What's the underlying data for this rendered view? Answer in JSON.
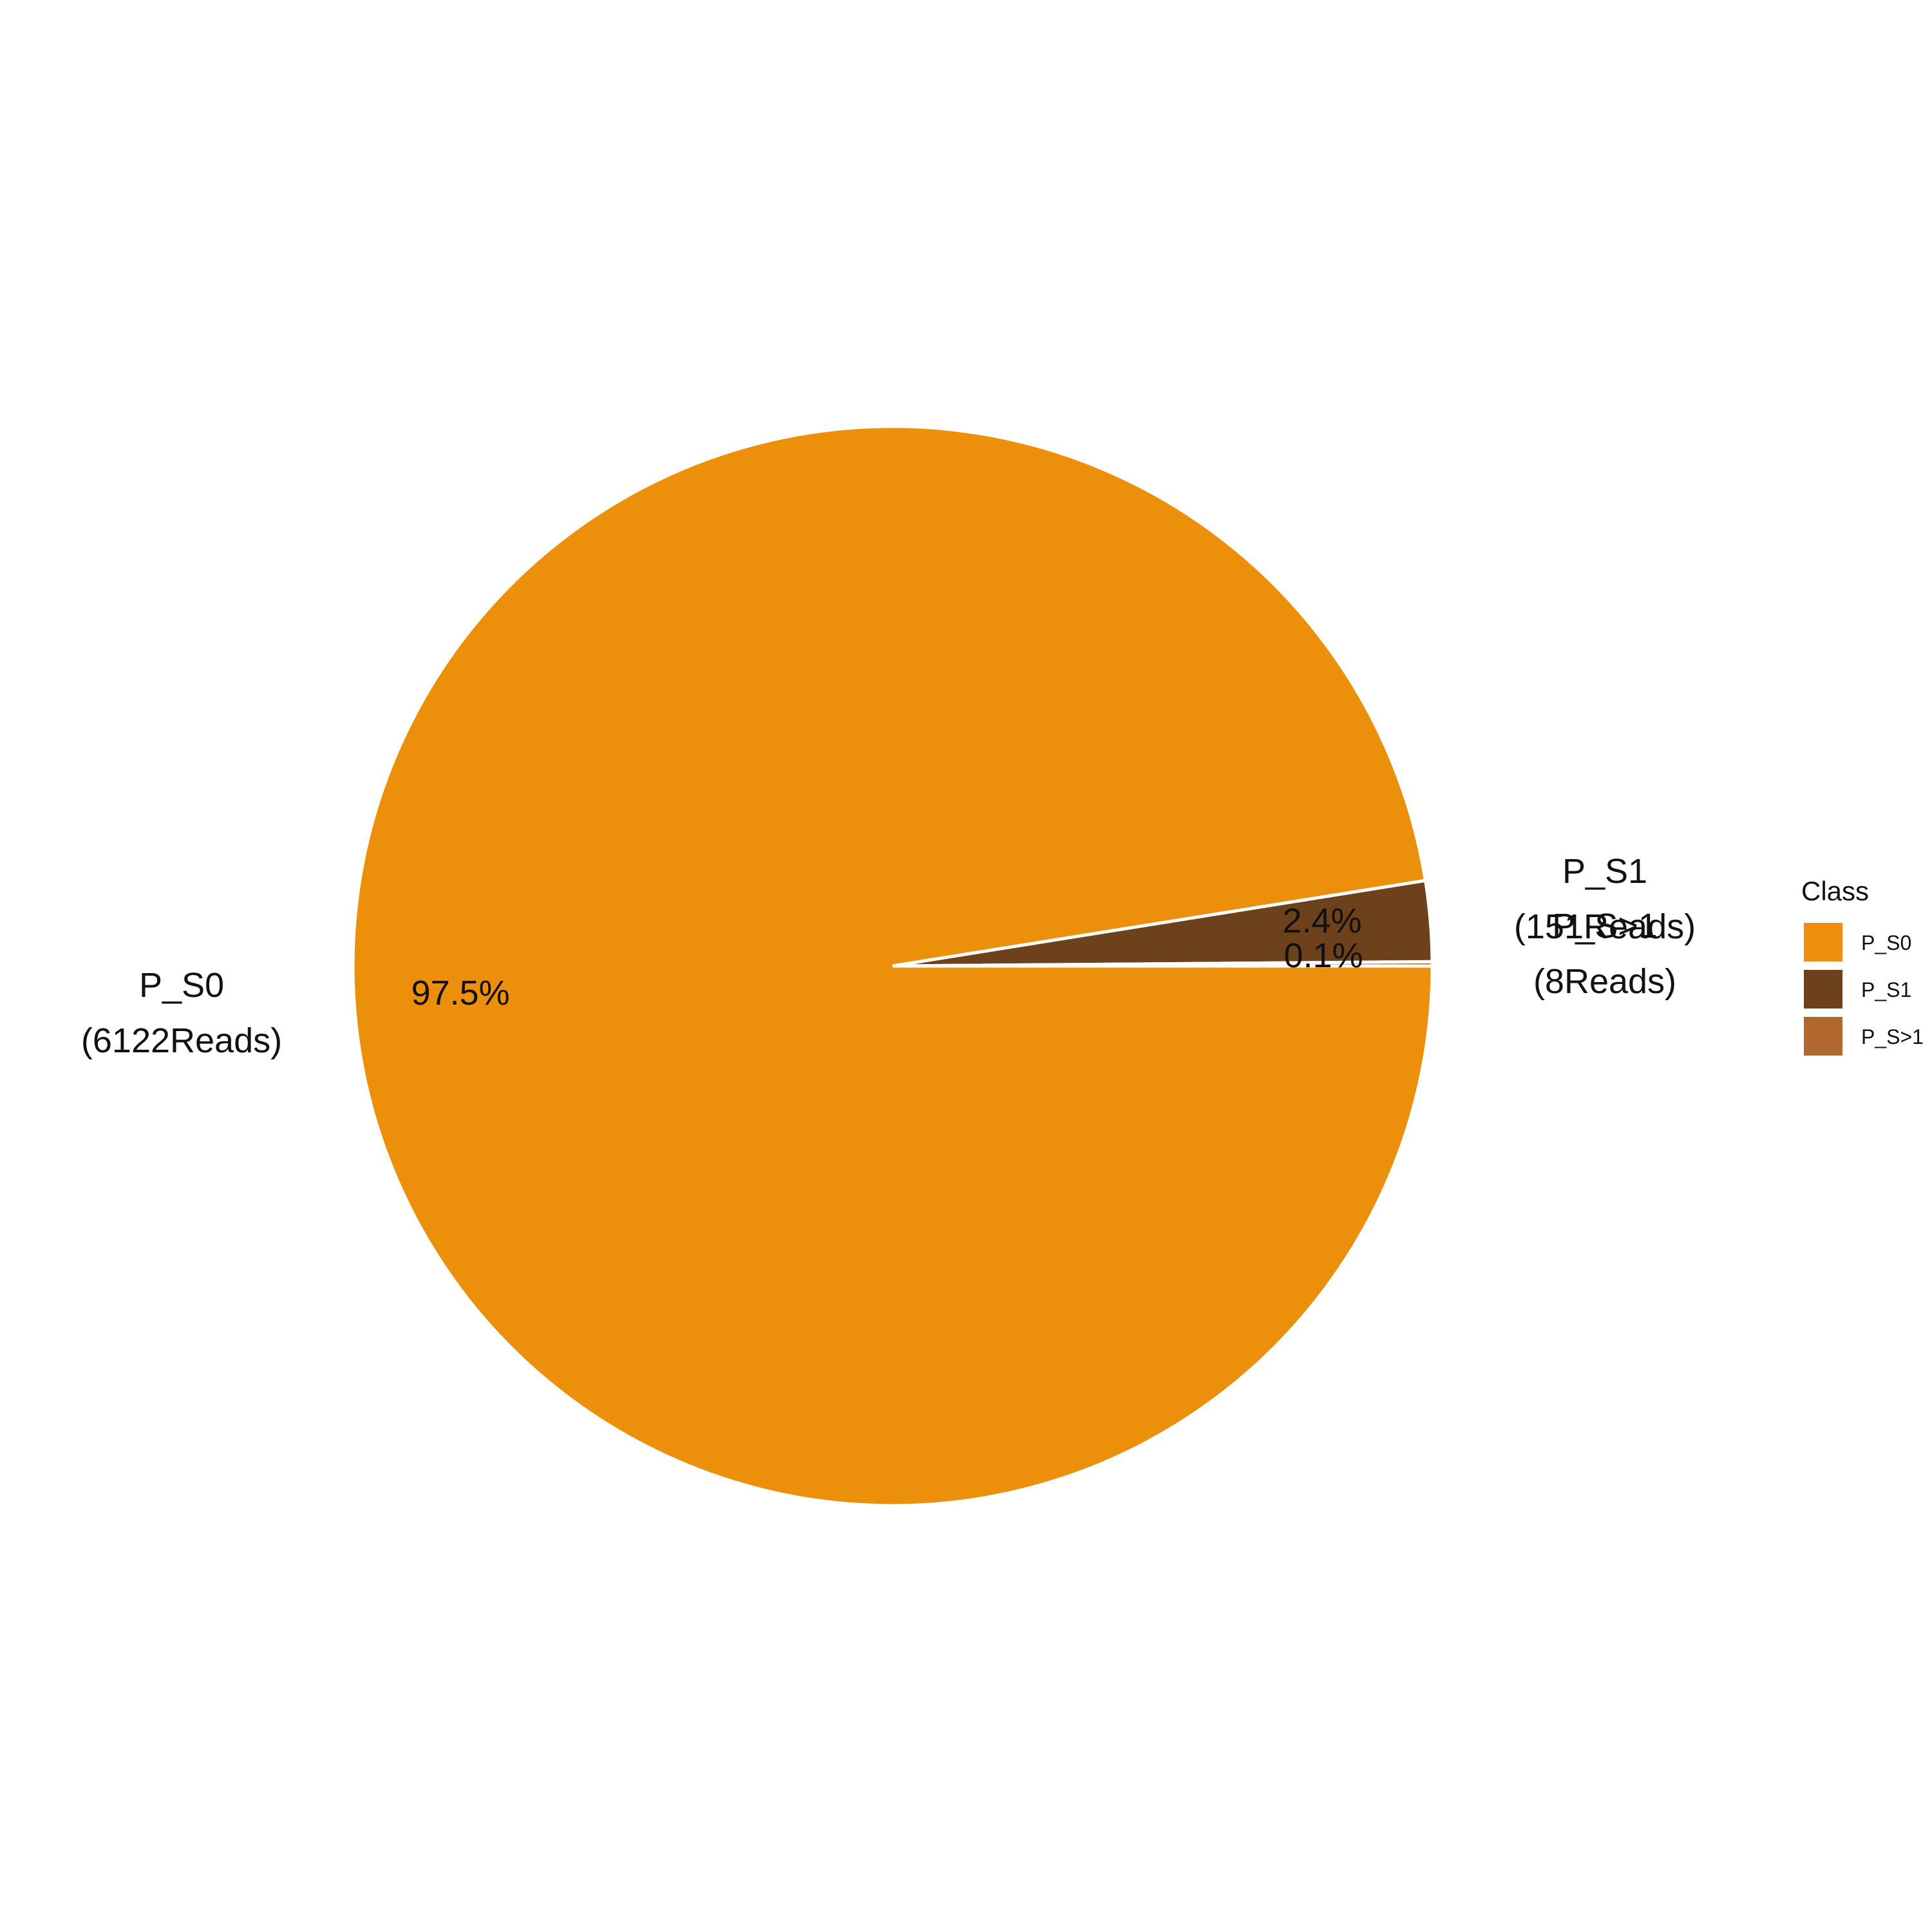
{
  "chart_data": {
    "type": "pie",
    "slices": [
      {
        "category": "P_S0",
        "reads": 6122,
        "percent_label": "97.5%",
        "outer_name": "P_S0",
        "outer_count": "(6122Reads)"
      },
      {
        "category": "P_S1",
        "reads": 151,
        "percent_label": "2.4%",
        "outer_name": "P_S1",
        "outer_count": "(151Reads)"
      },
      {
        "category": "P_S>1",
        "reads": 8,
        "percent_label": "0.1%",
        "outer_name": "P_S>1",
        "outer_count": "(8Reads)"
      }
    ],
    "legend": {
      "title": "Class",
      "entries": [
        "P_S0",
        "P_S1",
        "P_S>1"
      ],
      "placement": "right"
    },
    "colors": {
      "P_S0": "#EC8F0B",
      "P_S1": "#6E411D",
      "P_S>1": "#B1682F"
    },
    "start_direction": "east (3 o'clock)",
    "slice_direction": "clockwise"
  }
}
